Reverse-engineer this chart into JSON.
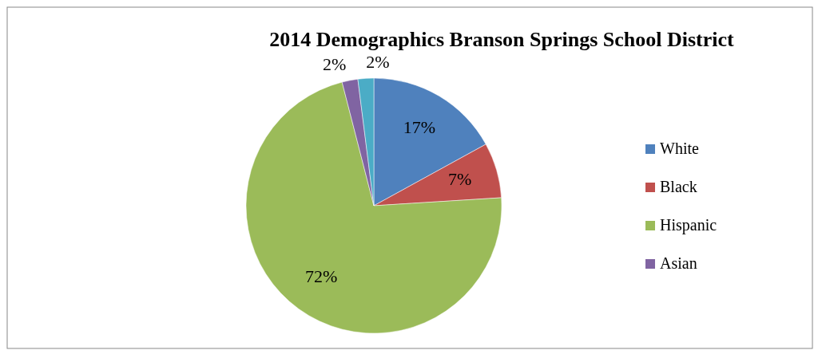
{
  "chart_data": {
    "type": "pie",
    "title": "2014 Demographics Branson Springs School District",
    "categories": [
      "White",
      "Black",
      "Hispanic",
      "Asian",
      null
    ],
    "values": [
      17,
      7,
      72,
      2,
      2
    ],
    "colors": [
      "#4f81bd",
      "#c0504d",
      "#9bbb59",
      "#8064a2",
      "#4bacc6"
    ],
    "value_labels": [
      "17%",
      "7%",
      "72%",
      "2%",
      "2%"
    ],
    "legend": "right"
  }
}
